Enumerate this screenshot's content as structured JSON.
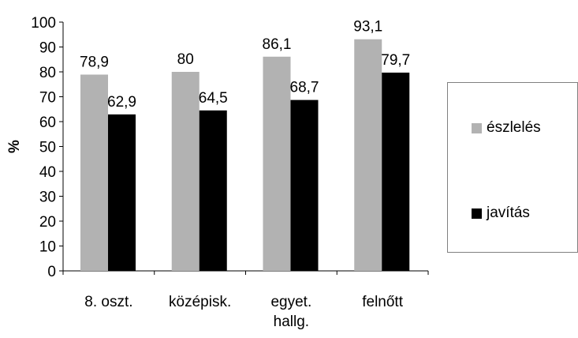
{
  "chart_data": {
    "type": "bar",
    "title": "",
    "xlabel": "",
    "ylabel": "%",
    "ylim": [
      0,
      100
    ],
    "yticks": [
      0,
      10,
      20,
      30,
      40,
      50,
      60,
      70,
      80,
      90,
      100
    ],
    "grid": false,
    "legend_position": "right",
    "categories": [
      [
        "8. oszt."
      ],
      [
        "középisk."
      ],
      [
        "egyet.",
        "hallg."
      ],
      [
        "felnőtt"
      ]
    ],
    "series": [
      {
        "name": "észlelés",
        "color": "#b2b2b2",
        "values": [
          78.9,
          80,
          86.1,
          93.1
        ],
        "labels": [
          "78,9",
          "80",
          "86,1",
          "93,1"
        ]
      },
      {
        "name": "javítás",
        "color": "#000000",
        "values": [
          62.9,
          64.5,
          68.7,
          79.7
        ],
        "labels": [
          "62,9",
          "64,5",
          "68,7",
          "79,7"
        ]
      }
    ]
  }
}
